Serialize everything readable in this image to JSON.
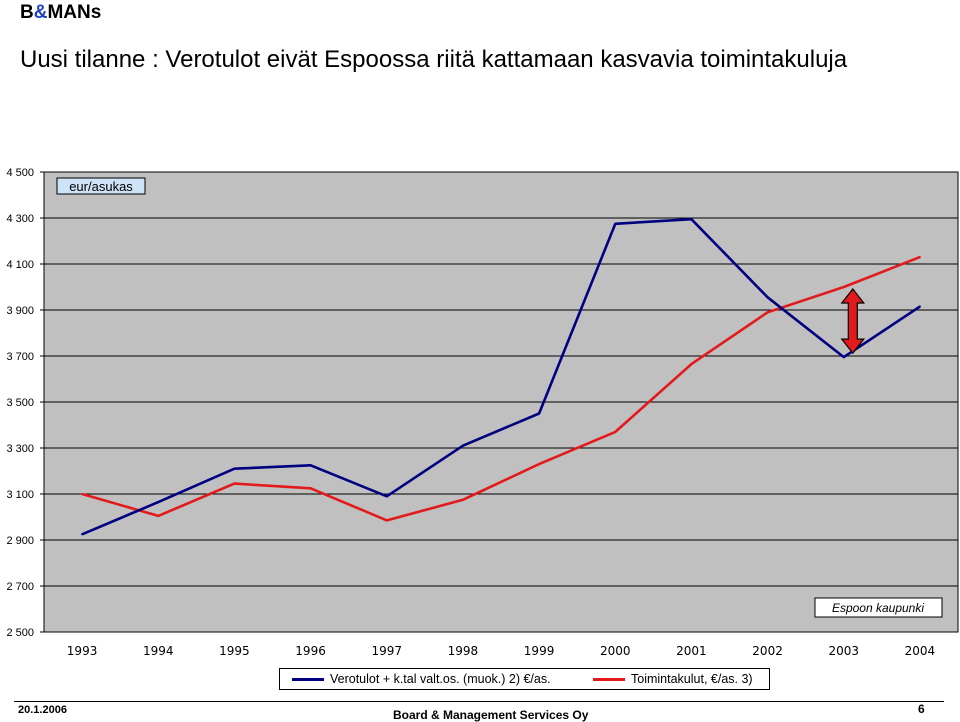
{
  "header": {
    "logo_b": "B",
    "logo_amp": "&",
    "logo_rest": "MANs",
    "title": "Uusi tilanne : Verotulot eivät Espoossa riitä kattamaan kasvavia toimintakuluja"
  },
  "chart_data": {
    "type": "line",
    "categories": [
      "1993",
      "1994",
      "1995",
      "1996",
      "1997",
      "1998",
      "1999",
      "2000",
      "2001",
      "2002",
      "2003",
      "2004"
    ],
    "series": [
      {
        "name": "Verotulot + k.tal valt.os. (muok.) 2) €/as.",
        "color": "#000080",
        "values": [
          2925,
          3065,
          3210,
          3225,
          3090,
          3310,
          3450,
          4275,
          4295,
          3955,
          3695,
          3915
        ]
      },
      {
        "name": "Toimintakulut, €/as. 3)",
        "color": "#e31a1c",
        "values": [
          3100,
          3005,
          3145,
          3125,
          2985,
          3075,
          3230,
          3370,
          3665,
          3890,
          4000,
          4130
        ]
      }
    ],
    "ylim": [
      2500,
      4500
    ],
    "yticks": [
      2500,
      2700,
      2900,
      3100,
      3300,
      3500,
      3700,
      3900,
      4100,
      4300,
      4500
    ],
    "ytick_labels": [
      "2 500",
      "2 700",
      "2 900",
      "3 100",
      "3 300",
      "3 500",
      "3 700",
      "3 900",
      "4 100",
      "4 300",
      "4 500"
    ],
    "unit_label": "eur/asukas",
    "annotation": "Espoon kaupunki",
    "grid": true,
    "plot_background": "#c0c0c0",
    "legend_position": "bottom",
    "arrow_color": "#e31a1c"
  },
  "footer": {
    "date": "20.1.2006",
    "company": "Board & Management Services Oy",
    "page": "6"
  }
}
